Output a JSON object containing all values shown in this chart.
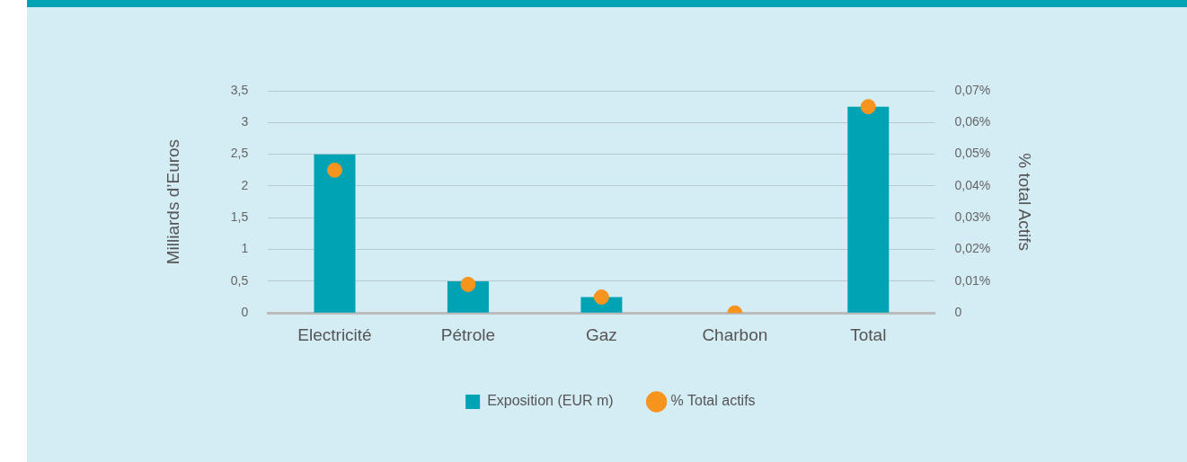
{
  "chart_data": {
    "type": "bar",
    "categories": [
      "Electricité",
      "Pétrole",
      "Gaz",
      "Charbon",
      "Total"
    ],
    "series": [
      {
        "name": "Exposition (EUR m)",
        "color": "#00a3b4",
        "values": [
          2.5,
          0.5,
          0.25,
          0,
          3.25
        ]
      },
      {
        "name": "% Total actifs",
        "type": "scatter",
        "axis": "y2",
        "color": "#f7941d",
        "values": [
          0.045,
          0.009,
          0.005,
          0,
          0.065
        ]
      }
    ],
    "ylabel": "Milliards d’Euros",
    "y2label": "% total Actifs",
    "ylim": [
      0,
      3.5
    ],
    "yticks": [
      0,
      {
        "value": 0.5,
        "label": "0,5"
      },
      1,
      {
        "value": 1.5,
        "label": "1,5"
      },
      2,
      {
        "value": 2.5,
        "label": "2,5"
      },
      3,
      {
        "value": 3.5,
        "label": "3,5"
      }
    ],
    "y2lim": [
      0,
      0.07
    ],
    "y2ticks": [
      0,
      {
        "value": 0.01,
        "label": "0,01%"
      },
      {
        "value": 0.02,
        "label": "0,02%"
      },
      {
        "value": 0.03,
        "label": "0,03%"
      },
      {
        "value": 0.04,
        "label": "0,04%"
      },
      {
        "value": 0.05,
        "label": "0,05%"
      },
      {
        "value": 0.06,
        "label": "0,06%"
      },
      {
        "value": 0.07,
        "label": "0,07%"
      }
    ],
    "grid": "y",
    "legend": "bottom",
    "marker": "circle"
  }
}
